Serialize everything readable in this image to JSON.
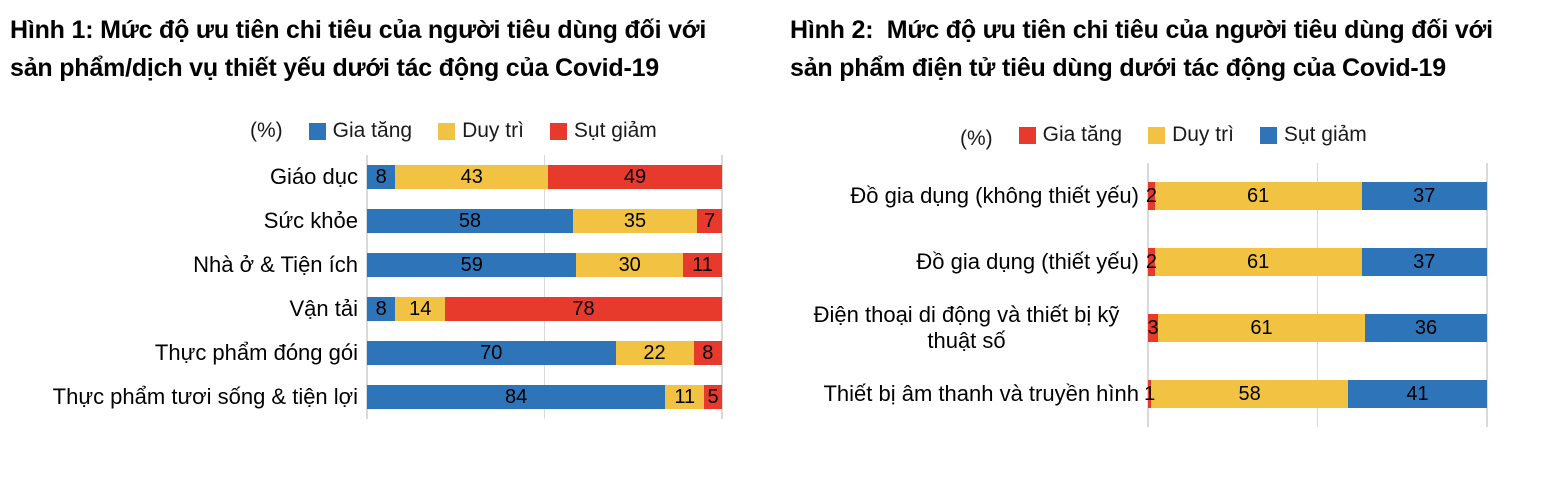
{
  "chart_data": [
    {
      "type": "bar",
      "orientation": "horizontal",
      "stacked": true,
      "title": "Hình 1: Mức độ ưu tiên chi tiêu của người tiêu dùng đối với\nsản phẩm/dịch vụ thiết yếu dưới tác động của Covid-19",
      "unit": "(%)",
      "xlim": [
        0,
        100
      ],
      "gridlines_x": [
        0,
        50,
        100
      ],
      "legend_position": "top",
      "categories": [
        "Giáo dục",
        "Sức khỏe",
        "Nhà ở & Tiện ích",
        "Vận tải",
        "Thực phẩm đóng gói",
        "Thực phẩm tươi sống & tiện lợi"
      ],
      "series": [
        {
          "name": "Gia tăng",
          "color": "#2E74B9",
          "values": [
            8,
            58,
            59,
            8,
            70,
            84
          ]
        },
        {
          "name": "Duy trì",
          "color": "#F2C342",
          "values": [
            43,
            35,
            30,
            14,
            22,
            11
          ]
        },
        {
          "name": "Sụt giảm",
          "color": "#E7392C",
          "values": [
            49,
            7,
            11,
            78,
            8,
            5
          ]
        }
      ]
    },
    {
      "type": "bar",
      "orientation": "horizontal",
      "stacked": true,
      "title": "Hình 2:  Mức độ ưu tiên chi tiêu của người tiêu dùng đối với\nsản phẩm điện tử tiêu dùng dưới tác động của Covid-19",
      "unit": "(%)",
      "xlim": [
        0,
        100
      ],
      "gridlines_x": [
        0,
        50,
        100
      ],
      "legend_position": "top",
      "categories": [
        "Đồ gia dụng (không thiết yếu)",
        "Đồ gia dụng (thiết yếu)",
        "Điện thoại di động và thiết bị kỹ thuật số",
        "Thiết bị âm thanh và truyền hình"
      ],
      "series": [
        {
          "name": "Gia tăng",
          "color": "#E7392C",
          "values": [
            2,
            2,
            3,
            1
          ]
        },
        {
          "name": "Duy trì",
          "color": "#F2C342",
          "values": [
            61,
            61,
            61,
            58
          ]
        },
        {
          "name": "Sụt giảm",
          "color": "#2E74B9",
          "values": [
            37,
            37,
            36,
            41
          ]
        }
      ]
    }
  ],
  "style": {
    "gridline_color": "#D9D9D9",
    "text_color": "#000000",
    "background": "#FFFFFF"
  }
}
